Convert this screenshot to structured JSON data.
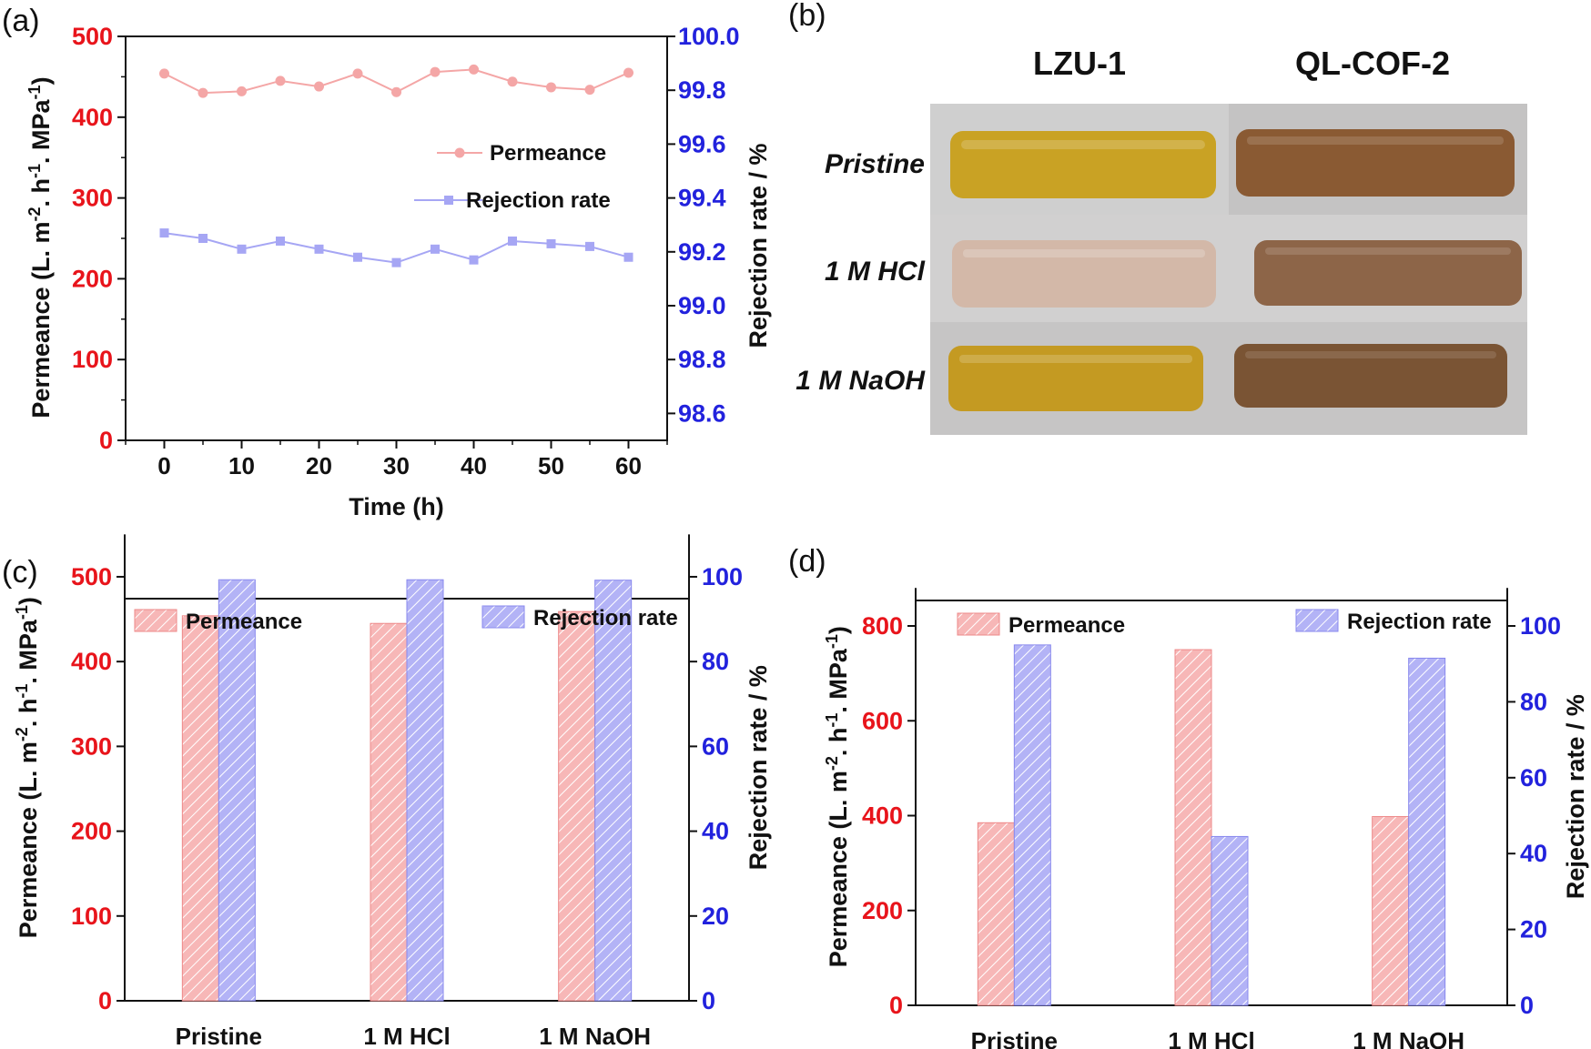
{
  "chart_data": [
    {
      "panel": "(a)",
      "type": "line",
      "xlabel": "Time (h)",
      "ylabel_left": "Permeance (L. m-2. h-1. MPa-1)",
      "ylabel_right": "Rejection rate / %",
      "x_ticks": [
        "0",
        "10",
        "20",
        "30",
        "40",
        "50",
        "60"
      ],
      "y_left_ticks": [
        "0",
        "100",
        "200",
        "300",
        "400",
        "500"
      ],
      "y_right_ticks": [
        "98.6",
        "98.8",
        "99.0",
        "99.2",
        "99.4",
        "99.6",
        "99.8",
        "100.0"
      ],
      "xlim": [
        -5,
        65
      ],
      "ylim_left": [
        0,
        500
      ],
      "ylim_right": [
        98.5,
        100.0
      ],
      "x": [
        0,
        5,
        10,
        15,
        20,
        25,
        30,
        35,
        40,
        45,
        50,
        55,
        60
      ],
      "series": [
        {
          "name": "Permeance",
          "axis": "left",
          "color": "#f4a6a6",
          "marker": "circle",
          "values": [
            454,
            430,
            432,
            445,
            438,
            454,
            431,
            456,
            459,
            444,
            437,
            434,
            455
          ]
        },
        {
          "name": "Rejection rate",
          "axis": "right",
          "color": "#a6a6f4",
          "marker": "square",
          "values": [
            99.27,
            99.25,
            99.21,
            99.24,
            99.21,
            99.18,
            99.16,
            99.21,
            99.17,
            99.24,
            99.23,
            99.22,
            99.18
          ]
        }
      ],
      "legend_position": "center-right"
    },
    {
      "panel": "(c)",
      "type": "bar",
      "ylabel_left": "Permeance (L. m-2. h-1. MPa-1)",
      "ylabel_right": "Rejection rate / %",
      "categories": [
        "Pristine",
        "1 M HCl",
        "1 M NaOH"
      ],
      "y_left_ticks": [
        "0",
        "100",
        "200",
        "300",
        "400",
        "500"
      ],
      "y_right_ticks": [
        "0",
        "20",
        "40",
        "60",
        "80",
        "100"
      ],
      "ylim_left": [
        0,
        550
      ],
      "ylim_right": [
        0,
        110
      ],
      "series": [
        {
          "name": "Permeance",
          "axis": "left",
          "color": "#f4a6a6",
          "values": [
            454,
            445,
            459
          ]
        },
        {
          "name": "Rejection rate",
          "axis": "right",
          "color": "#a6a6f4",
          "values": [
            99.3,
            99.3,
            99.2
          ]
        }
      ]
    },
    {
      "panel": "(d)",
      "type": "bar",
      "ylabel_left": "Permeance (L. m-2. h-1. MPa-1)",
      "ylabel_right": "Rejection rate / %",
      "categories": [
        "Pristine",
        "1 M HCl",
        "1 M NaOH"
      ],
      "y_left_ticks": [
        "0",
        "200",
        "400",
        "600",
        "800"
      ],
      "y_right_ticks": [
        "0",
        "20",
        "40",
        "60",
        "80",
        "100"
      ],
      "ylim_left": [
        0,
        880
      ],
      "ylim_right": [
        0,
        110
      ],
      "series": [
        {
          "name": "Permeance",
          "axis": "left",
          "color": "#f4a6a6",
          "values": [
            385,
            750,
            398
          ]
        },
        {
          "name": "Rejection rate",
          "axis": "right",
          "color": "#a6a6f4",
          "values": [
            95,
            44.5,
            91.5
          ]
        }
      ]
    }
  ],
  "photo": {
    "panel": "(b)",
    "columns": [
      "LZU-1",
      "QL-COF-2"
    ],
    "rows": [
      "Pristine",
      "1 M HCl",
      "1 M NaOH"
    ],
    "colors": {
      "background": "#c9c8c8",
      "lzu_pristine": "#c9a224",
      "lzu_hcl": "#d3b8a8",
      "lzu_naoh": "#c49a22",
      "ql_pristine": "#8a5a33",
      "ql_hcl": "#8d6548",
      "ql_naoh": "#7a5434"
    }
  },
  "colors": {
    "permeance": "#f4a6a6",
    "rejection": "#a6a6f4",
    "left_axis": "#e8141b",
    "right_axis": "#2222dd"
  }
}
